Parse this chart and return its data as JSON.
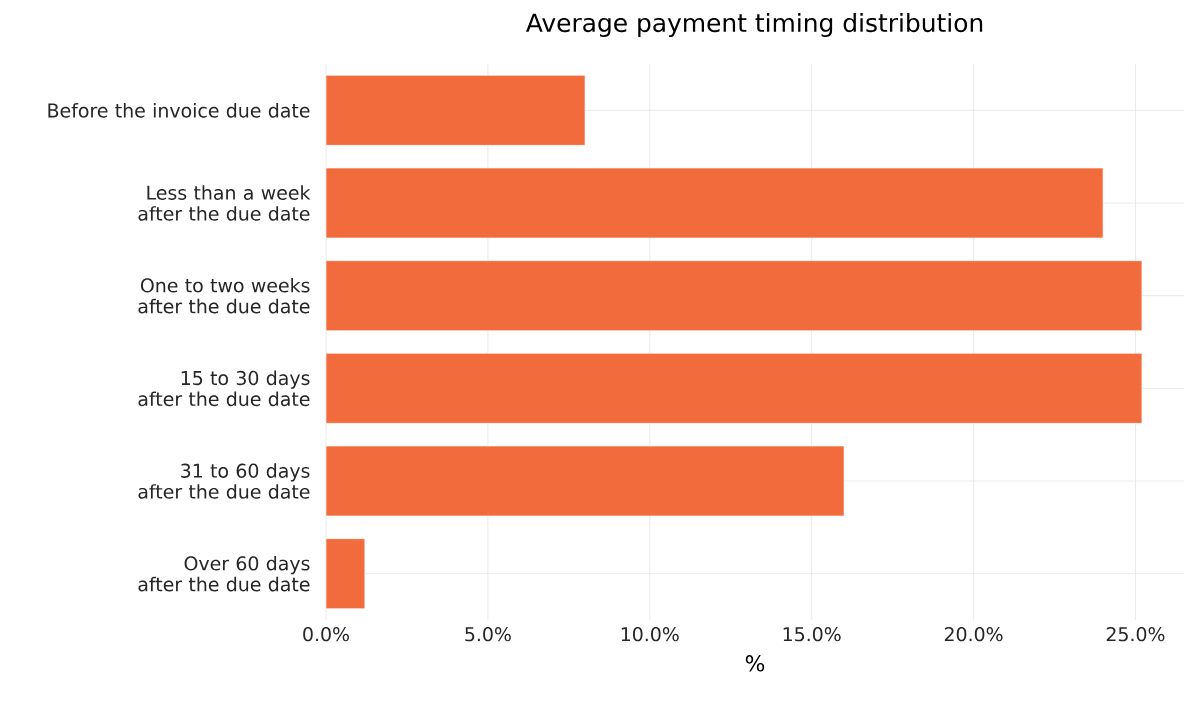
{
  "chart_data": {
    "type": "bar",
    "orientation": "horizontal",
    "title": "Average payment timing distribution",
    "xlabel": "%",
    "categories": [
      "Before the invoice due date",
      "Less than a week after the due date",
      "One to two weeks after the due date",
      "15 to 30 days after the due date",
      "31 to 60 days after the due date",
      "Over 60 days after the due date"
    ],
    "values": [
      8.0,
      24.0,
      25.2,
      25.2,
      16.0,
      1.2
    ],
    "color": "#f26b3d",
    "xlim": [
      0,
      26.5
    ],
    "xticks": [
      {
        "value": 0,
        "label": "0.0%"
      },
      {
        "value": 5,
        "label": "5.0%"
      },
      {
        "value": 10,
        "label": "10.0%"
      },
      {
        "value": 15,
        "label": "15.0%"
      },
      {
        "value": 20,
        "label": "20.0%"
      },
      {
        "value": 25,
        "label": "25.0%"
      }
    ],
    "grid": true
  }
}
